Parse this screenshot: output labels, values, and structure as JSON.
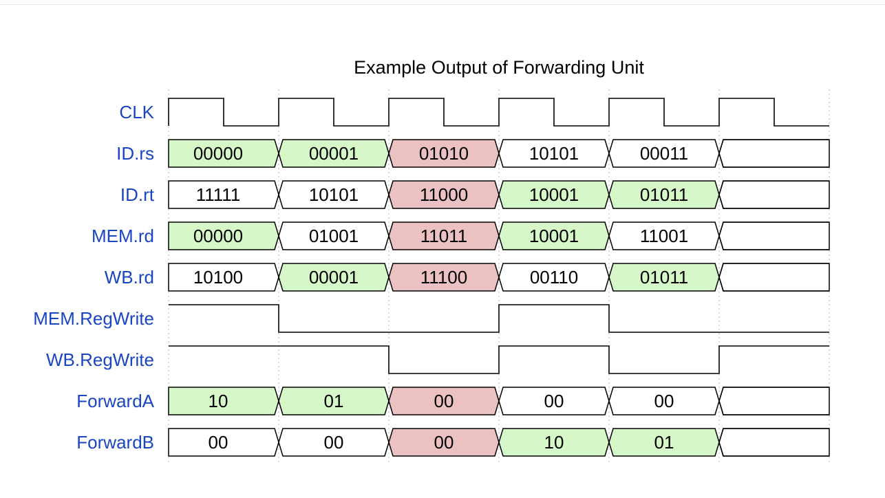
{
  "diagram": {
    "title": "Example Output of Forwarding Unit",
    "colors": {
      "label": "#1a45c2",
      "highlight_green": "#d6f7c8",
      "highlight_red": "#ebc2c1",
      "plain": "#ffffff",
      "line": "#000000"
    },
    "clock": {
      "name": "CLK",
      "periods": 6
    },
    "buses": [
      {
        "name": "ID.rs",
        "values": [
          "00000",
          "00001",
          "01010",
          "10101",
          "00011",
          ""
        ],
        "fills": [
          "green",
          "green",
          "red",
          "plain",
          "plain",
          "plain"
        ]
      },
      {
        "name": "ID.rt",
        "values": [
          "11111",
          "10101",
          "11000",
          "10001",
          "01011",
          ""
        ],
        "fills": [
          "plain",
          "plain",
          "red",
          "green",
          "green",
          "plain"
        ]
      },
      {
        "name": "MEM.rd",
        "values": [
          "00000",
          "01001",
          "11011",
          "10001",
          "11001",
          ""
        ],
        "fills": [
          "green",
          "plain",
          "red",
          "green",
          "plain",
          "plain"
        ]
      },
      {
        "name": "WB.rd",
        "values": [
          "10100",
          "00001",
          "11100",
          "00110",
          "01011",
          ""
        ],
        "fills": [
          "plain",
          "green",
          "red",
          "plain",
          "green",
          "plain"
        ]
      }
    ],
    "bits": [
      {
        "name": "MEM.RegWrite",
        "levels": [
          1,
          0,
          0,
          1,
          0,
          0
        ]
      },
      {
        "name": "WB.RegWrite",
        "levels": [
          1,
          1,
          0,
          1,
          0,
          1
        ]
      }
    ],
    "outputs": [
      {
        "name": "ForwardA",
        "values": [
          "10",
          "01",
          "00",
          "00",
          "00",
          ""
        ],
        "fills": [
          "green",
          "green",
          "red",
          "plain",
          "plain",
          "plain"
        ]
      },
      {
        "name": "ForwardB",
        "values": [
          "00",
          "00",
          "00",
          "10",
          "01",
          ""
        ],
        "fills": [
          "plain",
          "plain",
          "red",
          "green",
          "green",
          "plain"
        ]
      }
    ]
  }
}
